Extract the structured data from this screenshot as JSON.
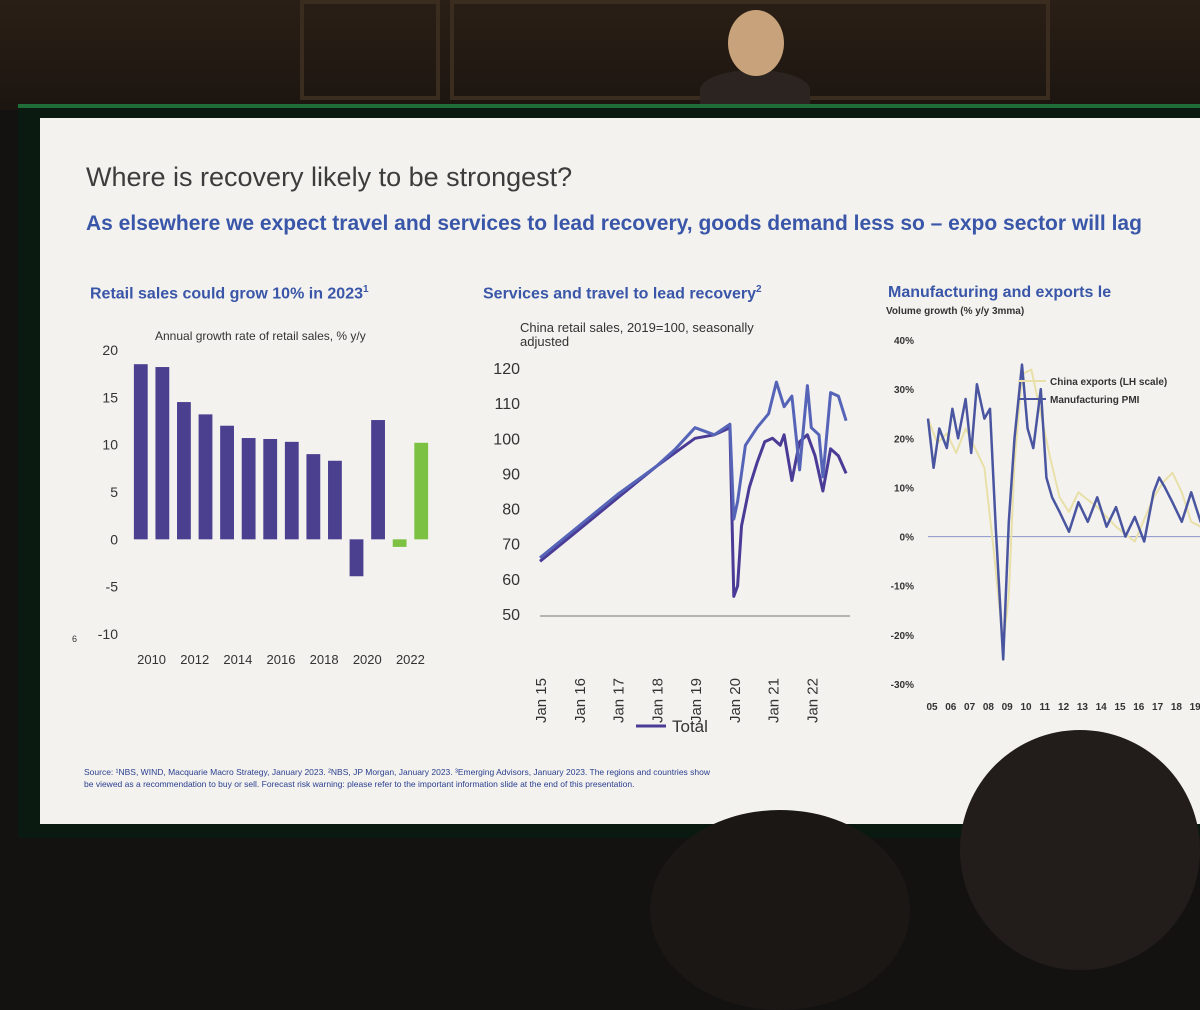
{
  "slide": {
    "title": "Where is recovery likely to be strongest?",
    "subtitle": "As elsewhere we expect travel and services to lead recovery, goods demand less so – expo sector will lag",
    "page_number": "6",
    "footnote_line1": "Source: ¹NBS, WIND, Macquarie Macro Strategy, January 2023. ²NBS, JP Morgan, January 2023. ³Emerging Advisors, January 2023. The regions and countries show",
    "footnote_line2": "be viewed as a recommendation to buy or sell. Forecast risk warning: please refer to the important information slide at the end of this presentation."
  },
  "panels": {
    "retail_title": "Retail sales could grow 10% in 2023",
    "retail_title_sup": "1",
    "services_title": "Services and travel to lead recovery",
    "services_title_sup": "2",
    "manufacturing_title": "Manufacturing and exports le"
  },
  "colors": {
    "bar_actual": "#4b3f8f",
    "bar_forecast": "#7cc142",
    "series_total": "#4a3c96",
    "series_services": "#5664b8",
    "series_exports": "#e8e0a8",
    "series_pmi": "#4a55a0",
    "title_blue": "#3a56a8"
  },
  "chart_data": [
    {
      "type": "bar",
      "title": "Retail sales could grow 10% in 2023",
      "ylabel": "Annual growth rate of retail sales, % y/y",
      "categories": [
        "2010",
        "2011",
        "2012",
        "2013",
        "2014",
        "2015",
        "2016",
        "2017",
        "2018",
        "2019",
        "2020",
        "2021",
        "2022",
        "2023"
      ],
      "values": [
        18.5,
        18.2,
        14.5,
        13.2,
        12.0,
        10.7,
        10.6,
        10.3,
        9.0,
        8.3,
        -3.9,
        12.6,
        -0.8,
        10.2
      ],
      "forecast_categories": [
        "2022",
        "2023"
      ],
      "x_tick_labels": [
        "2010",
        "2012",
        "2014",
        "2016",
        "2018",
        "2020",
        "2022"
      ],
      "y_ticks": [
        "20",
        "15",
        "10",
        "5",
        "0",
        "-5",
        "-10"
      ],
      "ylim": [
        -10,
        20
      ],
      "grid": false
    },
    {
      "type": "line",
      "title": "Services and travel to lead recovery",
      "ylabel": "China retail sales, 2019=100, seasonally adjusted",
      "ylim": [
        50,
        120
      ],
      "y_ticks": [
        "120",
        "110",
        "100",
        "90",
        "80",
        "70",
        "60",
        "50"
      ],
      "x_tick_labels": [
        "Jan 15",
        "Jan 16",
        "Jan 17",
        "Jan 18",
        "Jan 19",
        "Jan 20",
        "Jan 21",
        "Jan 22"
      ],
      "legend_position": "bottom",
      "series": [
        {
          "name": "Total",
          "x": [
            2015.0,
            2016.0,
            2017.0,
            2018.0,
            2018.5,
            2019.0,
            2019.5,
            2019.9,
            2020.0,
            2020.1,
            2020.2,
            2020.4,
            2020.6,
            2020.8,
            2021.0,
            2021.2,
            2021.3,
            2021.5,
            2021.7,
            2021.9,
            2022.1,
            2022.3,
            2022.5,
            2022.7,
            2022.9
          ],
          "values": [
            65,
            74,
            83,
            92,
            96,
            100,
            101,
            103,
            55,
            58,
            75,
            86,
            93,
            99,
            100,
            98,
            101,
            88,
            99,
            101,
            95,
            85,
            97,
            95,
            90
          ]
        },
        {
          "x": [
            2015.0,
            2016.0,
            2017.0,
            2018.0,
            2018.5,
            2019.0,
            2019.5,
            2019.9,
            2020.0,
            2020.1,
            2020.3,
            2020.6,
            2020.9,
            2021.1,
            2021.3,
            2021.5,
            2021.7,
            2021.9,
            2022.0,
            2022.2,
            2022.3,
            2022.5,
            2022.7,
            2022.9
          ],
          "values": [
            66,
            75,
            84,
            92,
            97,
            103,
            101,
            104,
            77,
            82,
            98,
            103,
            107,
            116,
            109,
            112,
            91,
            115,
            103,
            101,
            89,
            113,
            112,
            105
          ]
        }
      ]
    },
    {
      "type": "line",
      "title": "Manufacturing and exports le",
      "ylabel": "Volume growth (% y/y 3mma)",
      "ylim": [
        -30,
        40
      ],
      "y_ticks": [
        "40%",
        "30%",
        "20%",
        "10%",
        "0%",
        "-10%",
        "-20%",
        "-30%"
      ],
      "x_tick_labels": [
        "05",
        "06",
        "07",
        "08",
        "09",
        "10",
        "11",
        "12",
        "13",
        "14",
        "15",
        "16",
        "17",
        "18",
        "19"
      ],
      "legend_position": "top",
      "series": [
        {
          "name": "China exports (LH scale)",
          "x": [
            2005.0,
            2005.5,
            2006.0,
            2006.5,
            2007.0,
            2007.5,
            2008.0,
            2008.5,
            2009.0,
            2009.3,
            2009.6,
            2010.0,
            2010.5,
            2011.0,
            2011.5,
            2012.0,
            2012.5,
            2013.0,
            2014.0,
            2015.0,
            2016.0,
            2017.0,
            2017.5,
            2018.0,
            2018.5,
            2019.0,
            2019.5,
            2020.0
          ],
          "values": [
            24,
            19,
            21,
            17,
            22,
            18,
            14,
            -3,
            -22,
            -12,
            15,
            33,
            34,
            25,
            16,
            8,
            5,
            9,
            6,
            2,
            -1,
            8,
            11,
            13,
            9,
            3,
            2,
            -14
          ]
        },
        {
          "name": "Manufacturing PMI",
          "x": [
            2005.0,
            2005.3,
            2005.6,
            2006.0,
            2006.3,
            2006.6,
            2007.0,
            2007.3,
            2007.6,
            2008.0,
            2008.3,
            2008.6,
            2009.0,
            2009.3,
            2009.6,
            2010.0,
            2010.3,
            2010.6,
            2011.0,
            2011.3,
            2011.6,
            2012.0,
            2012.5,
            2013.0,
            2013.5,
            2014.0,
            2014.5,
            2015.0,
            2015.5,
            2016.0,
            2016.5,
            2017.0,
            2017.3,
            2017.6,
            2018.0,
            2018.5,
            2019.0,
            2019.5,
            2020.0
          ],
          "values": [
            24,
            14,
            22,
            18,
            26,
            20,
            28,
            17,
            31,
            24,
            26,
            2,
            -25,
            3,
            20,
            35,
            22,
            18,
            30,
            12,
            8,
            5,
            1,
            7,
            3,
            8,
            2,
            6,
            0,
            4,
            -1,
            9,
            12,
            10,
            7,
            3,
            9,
            3,
            0
          ]
        }
      ]
    }
  ]
}
